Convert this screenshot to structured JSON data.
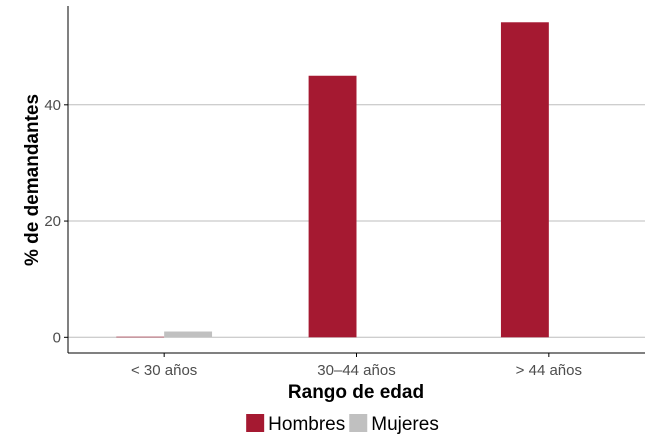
{
  "chart_data": {
    "type": "bar",
    "categories": [
      "< 30 años",
      "30–44 años",
      "> 44 años"
    ],
    "series": [
      {
        "name": "Hombres",
        "color": "#a51931",
        "values": [
          0.1,
          45,
          54.2
        ]
      },
      {
        "name": "Mujeres",
        "color": "#c0c0c0",
        "values": [
          1.0,
          0,
          0
        ]
      }
    ],
    "xlabel": "Rango de edad",
    "ylabel": "% de demandantes",
    "ylim": [
      -2.7,
      57
    ],
    "yticks": [
      0,
      20,
      40
    ],
    "grid": "horizontal-major",
    "legend_position": "bottom"
  }
}
